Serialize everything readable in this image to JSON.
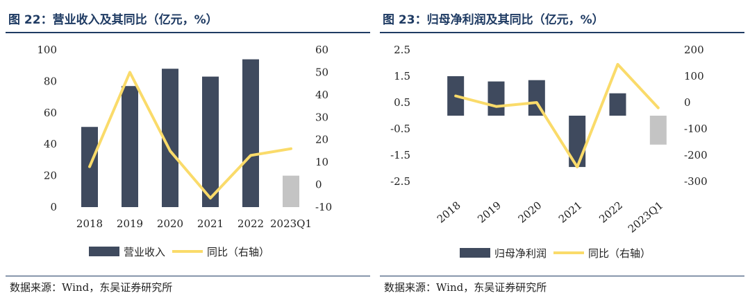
{
  "colors": {
    "bar": "#3f4a5e",
    "bar_forecast": "#c4c4c4",
    "line": "#fadb6a",
    "title": "#1f3b63"
  },
  "chart_data": [
    {
      "type": "bar",
      "title": "图 22：营业收入及其同比（亿元，%）",
      "categories": [
        "2018",
        "2019",
        "2020",
        "2021",
        "2022",
        "2023Q1"
      ],
      "series": [
        {
          "name": "营业收入",
          "type": "bar",
          "axis": "left",
          "values": [
            51,
            77,
            88,
            83,
            94,
            20
          ]
        },
        {
          "name": "同比（右轴）",
          "type": "line",
          "axis": "right",
          "values": [
            8,
            50,
            15,
            -6,
            13,
            16
          ]
        }
      ],
      "ylim": [
        0,
        100
      ],
      "y2lim": [
        -10,
        60
      ],
      "yticks": [
        "100",
        "80",
        "60",
        "40",
        "20",
        "0"
      ],
      "y2ticks": [
        "60",
        "50",
        "40",
        "30",
        "20",
        "10",
        "0",
        "-10"
      ],
      "legend": {
        "bar_label": "营业收入",
        "line_label": "同比（右轴）"
      },
      "source": "数据来源：Wind，东吴证券研究所"
    },
    {
      "type": "bar",
      "title": "图 23：归母净利润及其同比（亿元，%）",
      "categories": [
        "2018",
        "2019",
        "2020",
        "2021",
        "2022",
        "2023Q1"
      ],
      "series": [
        {
          "name": "归母净利润",
          "type": "bar",
          "axis": "left",
          "values": [
            1.5,
            1.3,
            1.35,
            -1.95,
            0.85,
            -1.1
          ]
        },
        {
          "name": "同比（右轴）",
          "type": "line",
          "axis": "right",
          "values": [
            25,
            -15,
            0,
            -245,
            145,
            -20
          ]
        }
      ],
      "ylim": [
        -2.5,
        2.5
      ],
      "y2lim": [
        -300,
        200
      ],
      "yticks": [
        "2.5",
        "1.5",
        "0.5",
        "-0.5",
        "-1.5",
        "-2.5"
      ],
      "y2ticks": [
        "200",
        "100",
        "0",
        "-100",
        "-200",
        "-300"
      ],
      "legend": {
        "bar_label": "归母净利润",
        "line_label": "同比（右轴）"
      },
      "source": "数据来源：Wind，东吴证券研究所"
    }
  ]
}
